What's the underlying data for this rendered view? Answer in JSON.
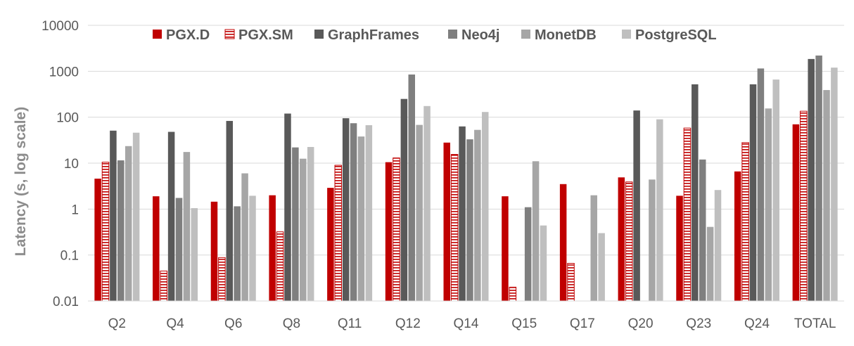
{
  "chart_data": {
    "type": "bar",
    "title": "",
    "xlabel": "",
    "ylabel": "Latency (s, log scale)",
    "yscale": "log",
    "ylim": [
      0.01,
      10000
    ],
    "yticks": [
      "0.01",
      "0.1",
      "1",
      "10",
      "100",
      "1000",
      "10000"
    ],
    "grid": true,
    "legend_position": "top",
    "categories": [
      "Q2",
      "Q4",
      "Q6",
      "Q8",
      "Q11",
      "Q12",
      "Q14",
      "Q15",
      "Q17",
      "Q20",
      "Q23",
      "Q24",
      "TOTAL"
    ],
    "series": [
      {
        "name": "PGX.D",
        "color": "#c00000",
        "pattern": "solid",
        "values": [
          4.6,
          1.9,
          1.45,
          2.0,
          2.9,
          10.5,
          28,
          1.9,
          3.5,
          4.9,
          1.95,
          6.6,
          70
        ]
      },
      {
        "name": "PGX.SM",
        "color": "#c00000",
        "pattern": "horizontal-stripes",
        "values": [
          10.5,
          0.045,
          0.088,
          0.32,
          9.0,
          13,
          15.5,
          0.02,
          0.066,
          3.9,
          58,
          28,
          135
        ]
      },
      {
        "name": "GraphFrames",
        "color": "#595959",
        "pattern": "solid",
        "values": [
          51,
          48,
          83,
          120,
          95,
          250,
          63,
          null,
          null,
          140,
          520,
          520,
          1850
        ]
      },
      {
        "name": "Neo4j",
        "color": "#7f7f7f",
        "pattern": "solid",
        "values": [
          11.5,
          1.75,
          1.15,
          22,
          74,
          850,
          33,
          1.1,
          null,
          null,
          12,
          1150,
          2200
        ]
      },
      {
        "name": "MonetDB",
        "color": "#a6a6a6",
        "pattern": "solid",
        "values": [
          23.5,
          17.5,
          6.0,
          12.5,
          38,
          68,
          53,
          11,
          2.0,
          4.4,
          0.41,
          155,
          390
        ]
      },
      {
        "name": "PostgreSQL",
        "color": "#bfbfbf",
        "pattern": "solid",
        "values": [
          46,
          1.05,
          1.95,
          22.5,
          67,
          175,
          130,
          0.44,
          0.3,
          90,
          2.6,
          660,
          1200
        ]
      }
    ]
  }
}
